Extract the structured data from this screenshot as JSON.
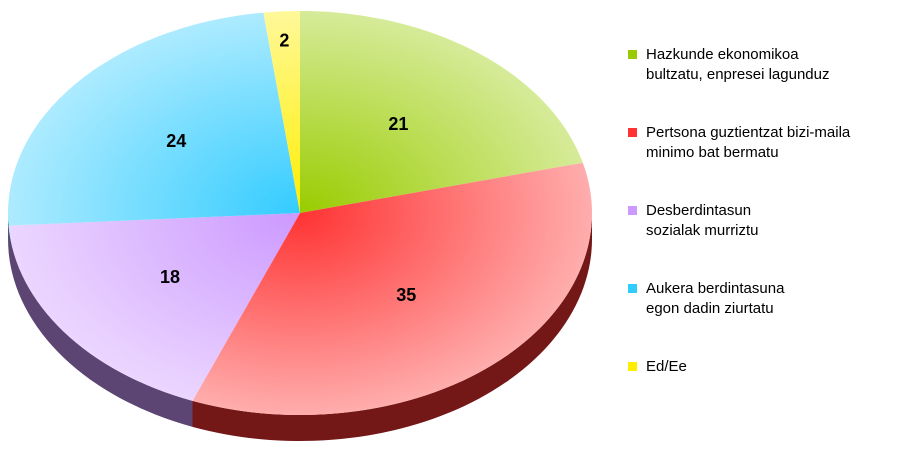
{
  "chart_data": {
    "type": "pie3d",
    "categories": [
      "Hazkunde ekonomikoa\nbultzatu, enpresei lagunduz",
      "Pertsona guztientzat bizi-maila\nminimo bat bermatu",
      "Desberdintasun\nsozialak murriztu",
      "Aukera berdintasuna\negon dadin ziurtatu",
      "Ed/Ee"
    ],
    "values": [
      21,
      35,
      18,
      24,
      2
    ],
    "colors": [
      "#99cc00",
      "#ff3333",
      "#cc99ff",
      "#33ccff",
      "#ffee00"
    ],
    "legend": "right"
  }
}
